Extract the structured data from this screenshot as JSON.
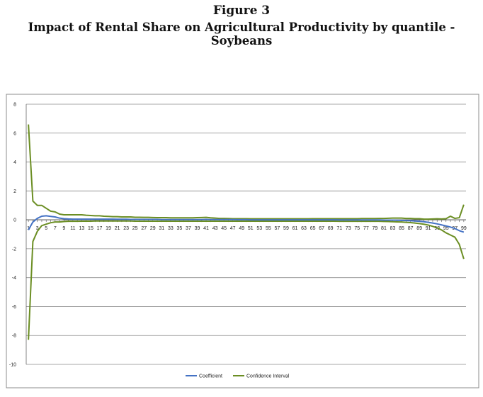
{
  "figure": {
    "label": "Figure 3",
    "caption": "Impact of Rental Share on Agricultural Productivity by quantile - Soybeans"
  },
  "chart_data": {
    "type": "line",
    "title": "",
    "xlabel": "",
    "ylabel": "",
    "x": [
      1,
      2,
      3,
      4,
      5,
      6,
      7,
      8,
      9,
      10,
      11,
      12,
      13,
      14,
      15,
      16,
      17,
      18,
      19,
      20,
      21,
      22,
      23,
      24,
      25,
      26,
      27,
      28,
      29,
      30,
      31,
      32,
      33,
      34,
      35,
      36,
      37,
      38,
      39,
      40,
      41,
      42,
      43,
      44,
      45,
      46,
      47,
      48,
      49,
      50,
      51,
      52,
      53,
      54,
      55,
      56,
      57,
      58,
      59,
      60,
      61,
      62,
      63,
      64,
      65,
      66,
      67,
      68,
      69,
      70,
      71,
      72,
      73,
      74,
      75,
      76,
      77,
      78,
      79,
      80,
      81,
      82,
      83,
      84,
      85,
      86,
      87,
      88,
      89,
      90,
      91,
      92,
      93,
      94,
      95,
      96,
      97,
      98,
      99
    ],
    "xticks": [
      "1",
      "3",
      "5",
      "7",
      "9",
      "11",
      "13",
      "15",
      "17",
      "19",
      "21",
      "23",
      "25",
      "27",
      "29",
      "31",
      "33",
      "35",
      "37",
      "39",
      "41",
      "43",
      "45",
      "47",
      "49",
      "51",
      "53",
      "55",
      "57",
      "59",
      "61",
      "63",
      "65",
      "67",
      "69",
      "71",
      "73",
      "75",
      "77",
      "79",
      "81",
      "83",
      "85",
      "87",
      "89",
      "91",
      "93",
      "95",
      "97",
      "99"
    ],
    "ylim": [
      -10,
      8
    ],
    "yticks": [
      "8",
      "6",
      "4",
      "2",
      "0",
      "-2",
      "-4",
      "-6",
      "-8",
      "-10"
    ],
    "grid": true,
    "legend_position": "bottom-center",
    "series": [
      {
        "name": "Coefficient",
        "color": "#4472C4",
        "values": [
          -0.7,
          -0.15,
          0.1,
          0.25,
          0.28,
          0.24,
          0.2,
          0.12,
          0.08,
          0.06,
          0.05,
          0.05,
          0.05,
          0.05,
          0.05,
          0.05,
          0.05,
          0.05,
          0.05,
          0.05,
          0.04,
          0.04,
          0.04,
          0.03,
          0.03,
          0.03,
          0.03,
          0.03,
          0.03,
          0.03,
          0.02,
          0.02,
          0.02,
          0.02,
          0.02,
          0.02,
          0.02,
          0.02,
          0.02,
          0.02,
          0.03,
          0.02,
          0.02,
          0.02,
          0.02,
          0.02,
          0.02,
          0.01,
          0.01,
          0.01,
          0.0,
          0.0,
          0.0,
          0.0,
          0.0,
          0.0,
          0.0,
          0.0,
          0.0,
          0.0,
          0.0,
          0.0,
          0.0,
          0.0,
          0.0,
          0.0,
          0.0,
          0.0,
          0.0,
          0.0,
          -0.01,
          -0.01,
          -0.01,
          -0.01,
          -0.01,
          -0.01,
          -0.01,
          -0.01,
          -0.01,
          -0.01,
          -0.02,
          -0.02,
          -0.02,
          -0.03,
          -0.04,
          -0.05,
          -0.06,
          -0.08,
          -0.1,
          -0.13,
          -0.17,
          -0.22,
          -0.28,
          -0.35,
          -0.42,
          -0.5,
          -0.6,
          -0.75,
          -0.85
        ]
      },
      {
        "name": "Confidence Interval",
        "color": "#6B8E23",
        "values": [
          6.6,
          1.3,
          1.0,
          1.0,
          0.8,
          0.6,
          0.55,
          0.4,
          0.35,
          0.35,
          0.35,
          0.35,
          0.35,
          0.32,
          0.3,
          0.28,
          0.28,
          0.25,
          0.24,
          0.22,
          0.22,
          0.2,
          0.2,
          0.2,
          0.18,
          0.18,
          0.17,
          0.17,
          0.16,
          0.15,
          0.15,
          0.15,
          0.14,
          0.14,
          0.14,
          0.14,
          0.14,
          0.14,
          0.15,
          0.16,
          0.17,
          0.14,
          0.12,
          0.1,
          0.1,
          0.09,
          0.08,
          0.08,
          0.08,
          0.08,
          0.07,
          0.07,
          0.07,
          0.07,
          0.07,
          0.07,
          0.07,
          0.07,
          0.07,
          0.07,
          0.07,
          0.07,
          0.07,
          0.07,
          0.08,
          0.08,
          0.08,
          0.08,
          0.08,
          0.08,
          0.08,
          0.08,
          0.08,
          0.08,
          0.08,
          0.09,
          0.09,
          0.09,
          0.09,
          0.1,
          0.1,
          0.11,
          0.12,
          0.12,
          0.12,
          0.1,
          0.1,
          0.08,
          0.08,
          0.05,
          0.05,
          0.06,
          0.07,
          0.06,
          0.08,
          0.25,
          0.1,
          0.15,
          1.05
        ]
      },
      {
        "name": "Confidence Interval",
        "color": "#6B8E23",
        "values": [
          -8.3,
          -1.5,
          -0.8,
          -0.4,
          -0.3,
          -0.2,
          -0.15,
          -0.15,
          -0.12,
          -0.1,
          -0.1,
          -0.1,
          -0.09,
          -0.09,
          -0.09,
          -0.08,
          -0.08,
          -0.08,
          -0.08,
          -0.08,
          -0.08,
          -0.08,
          -0.08,
          -0.08,
          -0.09,
          -0.09,
          -0.09,
          -0.09,
          -0.09,
          -0.09,
          -0.09,
          -0.09,
          -0.09,
          -0.09,
          -0.09,
          -0.09,
          -0.09,
          -0.09,
          -0.09,
          -0.09,
          -0.09,
          -0.09,
          -0.09,
          -0.09,
          -0.09,
          -0.09,
          -0.09,
          -0.09,
          -0.09,
          -0.09,
          -0.09,
          -0.09,
          -0.09,
          -0.09,
          -0.09,
          -0.09,
          -0.09,
          -0.09,
          -0.09,
          -0.09,
          -0.09,
          -0.09,
          -0.09,
          -0.09,
          -0.09,
          -0.09,
          -0.09,
          -0.09,
          -0.09,
          -0.09,
          -0.1,
          -0.1,
          -0.1,
          -0.1,
          -0.1,
          -0.1,
          -0.1,
          -0.1,
          -0.1,
          -0.1,
          -0.11,
          -0.12,
          -0.13,
          -0.14,
          -0.15,
          -0.17,
          -0.19,
          -0.22,
          -0.26,
          -0.3,
          -0.36,
          -0.45,
          -0.55,
          -0.7,
          -0.9,
          -1.05,
          -1.2,
          -1.7,
          -2.7
        ]
      }
    ],
    "legend": [
      "Coefficient",
      "Confidence Interval"
    ]
  }
}
